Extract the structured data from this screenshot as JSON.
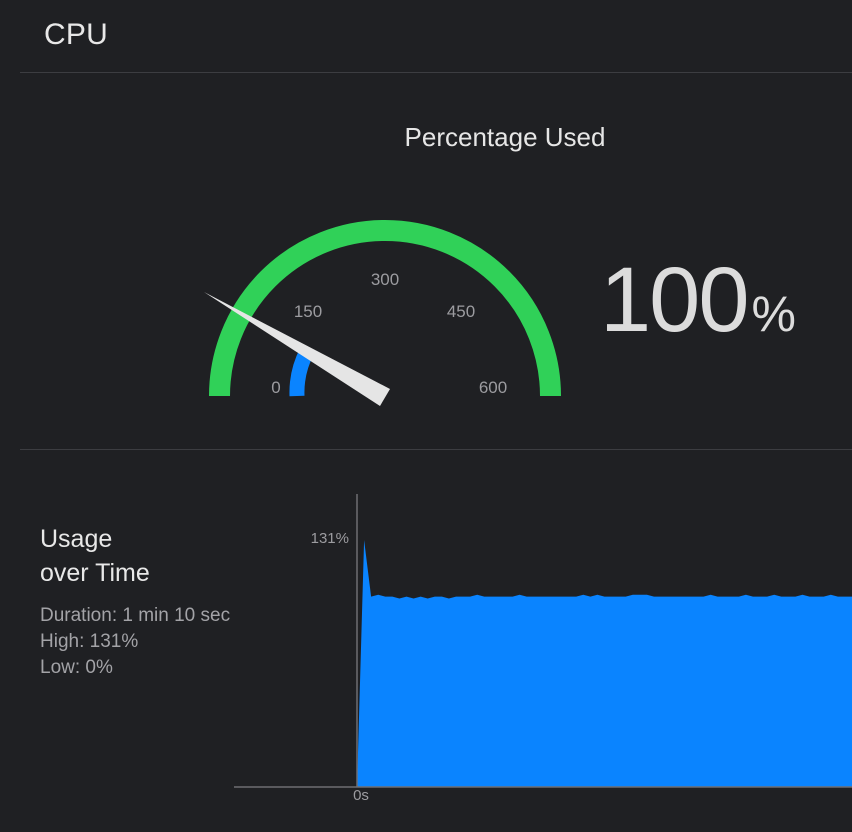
{
  "header": {
    "title": "CPU"
  },
  "gauge": {
    "title": "Percentage Used",
    "ticks": [
      "0",
      "150",
      "300",
      "450",
      "600"
    ],
    "max": 600,
    "current": 100,
    "value_text": "100",
    "unit": "%",
    "colors": {
      "track": "#30d158",
      "fill": "#0a84ff",
      "needle": "#e5e5e5"
    }
  },
  "usage": {
    "title_line1": "Usage",
    "title_line2": "over Time",
    "duration": "Duration: 1 min 10 sec",
    "high": "High: 131%",
    "low": "Low: 0%"
  },
  "chart_data": {
    "type": "area",
    "y_max_label": "131%",
    "x_start_label": "0s",
    "ylim": [
      0,
      131
    ],
    "x": [
      0,
      1,
      2,
      3,
      4,
      5,
      6,
      7,
      8,
      9,
      10,
      11,
      12,
      13,
      14,
      15,
      16,
      17,
      18,
      19,
      20,
      21,
      22,
      23,
      24,
      25,
      26,
      27,
      28,
      29,
      30,
      31,
      32,
      33,
      34,
      35,
      36,
      37,
      38,
      39,
      40,
      41,
      42,
      43,
      44,
      45,
      46,
      47,
      48,
      49,
      50,
      51,
      52,
      53,
      54,
      55,
      56,
      57,
      58,
      59,
      60,
      61,
      62,
      63,
      64,
      65,
      66,
      67,
      68,
      69,
      70
    ],
    "values": [
      0,
      131,
      101,
      102,
      101,
      101,
      100,
      101,
      100,
      101,
      100,
      101,
      101,
      100,
      101,
      101,
      101,
      102,
      101,
      101,
      101,
      101,
      101,
      102,
      101,
      101,
      101,
      101,
      101,
      101,
      101,
      101,
      102,
      101,
      102,
      101,
      101,
      101,
      101,
      102,
      102,
      102,
      101,
      101,
      101,
      101,
      101,
      101,
      101,
      101,
      102,
      101,
      101,
      101,
      101,
      102,
      101,
      101,
      101,
      102,
      101,
      101,
      101,
      102,
      101,
      101,
      101,
      102,
      101,
      101,
      101
    ],
    "color": "#0a84ff",
    "grid": false
  }
}
